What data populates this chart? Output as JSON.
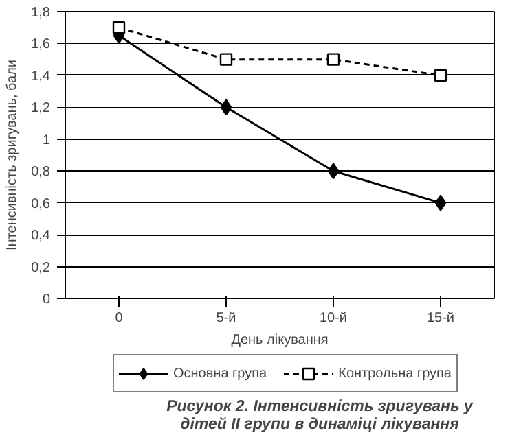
{
  "chart_data": {
    "type": "line",
    "title": "Рисунок 2. Інтенсивність зригувань у дітей ІІ групи в динаміці лікування",
    "xlabel": "День лікування",
    "ylabel": "Інтенсивність зригувань, бали",
    "categories": [
      "0",
      "5-й",
      "10-й",
      "15-й"
    ],
    "series": [
      {
        "name": "Основна група",
        "color": "#000000",
        "values": [
          1.65,
          1.2,
          0.8,
          0.6
        ],
        "marker": "diamond",
        "line_style": "solid"
      },
      {
        "name": "Контрольна група",
        "color": "#000000",
        "values": [
          1.7,
          1.5,
          1.5,
          1.4
        ],
        "marker": "square",
        "line_style": "dashed"
      }
    ],
    "ylim": [
      0,
      1.8
    ],
    "yticks": [
      0,
      {
        "value": 0.2,
        "label": "0,2"
      },
      {
        "value": 0.4,
        "label": "0,4"
      },
      {
        "value": 0.6,
        "label": "0,6"
      },
      {
        "value": 0.8,
        "label": "0,8"
      },
      1,
      {
        "value": 1.2,
        "label": "1,2"
      },
      {
        "value": 1.4,
        "label": "1,4"
      },
      {
        "value": 1.6,
        "label": "1,6"
      },
      {
        "value": 1.8,
        "label": "1,8"
      }
    ],
    "grid": "y",
    "legend": "bottom"
  }
}
